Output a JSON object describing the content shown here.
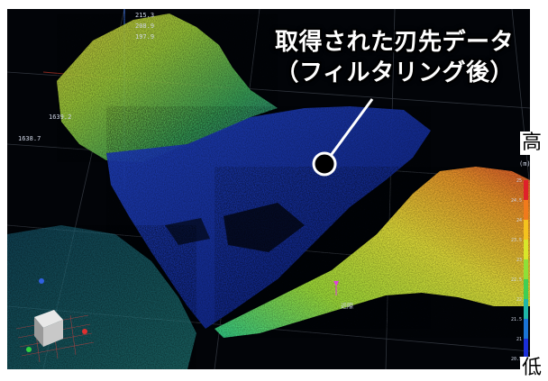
{
  "callout": {
    "line1": "取得された刃先データ",
    "line2": "（フィルタリング後）"
  },
  "legend": {
    "high_label": "高",
    "low_label": "低",
    "unit": "(m)",
    "ticks": [
      "25",
      "24.5",
      "24",
      "23.5",
      "23",
      "22.5",
      "22",
      "21.5",
      "21",
      "20.5"
    ],
    "colors": [
      "#e0202a",
      "#f07a1c",
      "#f4c21e",
      "#d8e62a",
      "#8ee038",
      "#3fcf54",
      "#1fb6a8",
      "#1a74d6",
      "#1a2fd8"
    ]
  },
  "axis_readouts": [
    "215.3",
    "208.9",
    "197.9",
    "1639.2",
    "1638.7"
  ],
  "marker_label": "近際",
  "colors": {
    "background": "#020408",
    "grid": "#4a4f5a"
  }
}
